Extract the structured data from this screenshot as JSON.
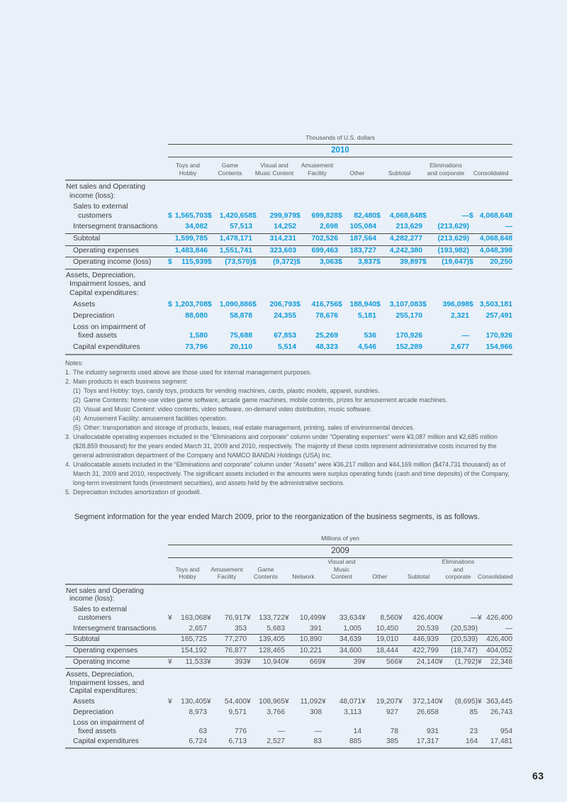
{
  "page": {
    "number": "63"
  },
  "colors": {
    "page_background": "#e9f0f8",
    "accent_blue": "#0e9bd8",
    "text_dark": "#3f3b3a",
    "text_gray": "#595757"
  },
  "intro_paragraph": "Segment information for the year ended March 2009, prior to the reorganization of the business segments, is as follows.",
  "table2010": {
    "unit_label": "Thousands of U.S. dollars",
    "year": "2010",
    "columns": [
      "Toys and\nHobby",
      "Game\nContents",
      "Visual and\nMusic Content",
      "Amusement\nFacility",
      "Other",
      "Subtotal",
      "Eliminations\nand corporate",
      "Consolidated"
    ],
    "rows": [
      {
        "label": "Net sales and Operating\nincome (loss):",
        "section": true
      },
      {
        "label": "Sales to external\ncustomers",
        "values": [
          "$1,565,703",
          "$1,420,658",
          "$299,979",
          "$699,828",
          "$ 82,480",
          "$4,068,648",
          "$ —",
          "$4,068,648"
        ]
      },
      {
        "label": "Intersegment transactions",
        "values": [
          "34,082",
          "57,513",
          "14,252",
          "2,698",
          "105,084",
          "213,629",
          "(213,629)",
          "—"
        ],
        "rule": true
      },
      {
        "label": "Subtotal",
        "values": [
          "1,599,785",
          "1,478,171",
          "314,231",
          "702,526",
          "187,564",
          "4,282,277",
          "(213,629)",
          "4,068,648"
        ],
        "rule": true
      },
      {
        "label": "Operating expenses",
        "values": [
          "1,483,846",
          "1,551,741",
          "323,603",
          "699,463",
          "183,727",
          "4,242,380",
          "(193,982)",
          "4,048,398"
        ],
        "rule": true
      },
      {
        "label": "Operating income (loss)",
        "values": [
          "$ 115,939",
          "$ (73,570)",
          "$ (9,372)",
          "$ 3,063",
          "$ 3,837",
          "$ 39,897",
          "$ (19,647)",
          "$ 20,250"
        ],
        "rule": true
      },
      {
        "label": "Assets, Depreciation,\nImpairment losses, and\nCapital expenditures:",
        "section": true
      },
      {
        "label": "Assets",
        "values": [
          "$1,203,708",
          "$1,090,886",
          "$206,793",
          "$416,756",
          "$188,940",
          "$3,107,083",
          "$ 396,098",
          "$3,503,181"
        ]
      },
      {
        "label": "Depreciation",
        "values": [
          "88,080",
          "58,878",
          "24,355",
          "78,676",
          "5,181",
          "255,170",
          "2,321",
          "257,491"
        ]
      },
      {
        "label": "Loss on impairment of\nfixed assets",
        "values": [
          "1,580",
          "75,688",
          "67,853",
          "25,269",
          "536",
          "170,926",
          "—",
          "170,926"
        ]
      },
      {
        "label": "Capital expenditures",
        "values": [
          "73,796",
          "20,110",
          "5,514",
          "48,323",
          "4,546",
          "152,289",
          "2,677",
          "154,966"
        ]
      }
    ]
  },
  "notes": {
    "heading": "Notes:",
    "items": [
      {
        "marker": "1.",
        "level": 0,
        "text": "The industry segments used above are those used for internal management purposes."
      },
      {
        "marker": "2.",
        "level": 0,
        "text": "Main products in each business segment:"
      },
      {
        "marker": "(1)",
        "level": 1,
        "text": "Toys and Hobby: toys, candy toys, products for vending machines, cards, plastic models, apparel, sundries."
      },
      {
        "marker": "(2)",
        "level": 1,
        "text": "Game Contents: home-use video game software, arcade game machines, mobile contents, prizes for amusement arcade machines."
      },
      {
        "marker": "(3)",
        "level": 1,
        "text": "Visual and Music Content: video contents, video software, on-demand video distribution, music software."
      },
      {
        "marker": "(4)",
        "level": 1,
        "text": "Amusement Facility: amusement facilities operation."
      },
      {
        "marker": "(5)",
        "level": 1,
        "text": "Other: transportation and storage of products, leases, real estate management, printing, sales of environmental devices."
      },
      {
        "marker": "3.",
        "level": 0,
        "text": "Unallocatable operating expenses included in the “Eliminations and corporate” column under “Operating expenses” were ¥3,087 million and ¥2,685 million ($28,859 thousand) for the years ended March 31, 2009 and 2010, respectively. The majority of these costs represent administrative costs incurred by the general administration department of the Company and NAMCO BANDAI Holdings (USA) Inc."
      },
      {
        "marker": "4.",
        "level": 0,
        "text": "Unallocatable assets included in the “Eliminations and corporate” column under “Assets” were ¥36,217 million and ¥44,169 million ($474,731 thousand) as of March 31, 2009 and 2010, respectively. The significant assets included in the amounts were surplus operating funds (cash and time deposits) of the Company, long-term investment funds (investment securities), and assets held by the administrative sections."
      },
      {
        "marker": "5.",
        "level": 0,
        "text": "Depreciation includes amortization of goodwill."
      }
    ]
  },
  "table2009": {
    "unit_label": "Millions of yen",
    "year": "2009",
    "columns": [
      "Toys and\nHobby",
      "Amusement\nFacility",
      "Game\nContents",
      "Network",
      "Visual and\nMusic\nContent",
      "Other",
      "Subtotal",
      "Eliminations\nand\ncorporate",
      "Consolidated"
    ],
    "rows": [
      {
        "label": "Net sales and Operating\nincome (loss):",
        "section": true
      },
      {
        "label": "Sales to external\ncustomers",
        "values": [
          "¥163,068",
          "¥76,917",
          "¥133,722",
          "¥10,499",
          "¥33,634",
          "¥ 8,560",
          "¥426,400",
          "¥ —",
          "¥426,400"
        ]
      },
      {
        "label": "Intersegment transactions",
        "values": [
          "2,657",
          "353",
          "5,683",
          "391",
          "1,005",
          "10,450",
          "20,539",
          "(20,539)",
          "—"
        ],
        "rule": true
      },
      {
        "label": "Subtotal",
        "values": [
          "165,725",
          "77,270",
          "139,405",
          "10,890",
          "34,639",
          "19,010",
          "446,939",
          "(20,539)",
          "426,400"
        ],
        "rule": true
      },
      {
        "label": "Operating expenses",
        "values": [
          "154,192",
          "76,877",
          "128,465",
          "10,221",
          "34,600",
          "18,444",
          "422,799",
          "(18,747)",
          "404,052"
        ],
        "rule": true
      },
      {
        "label": "Operating income",
        "values": [
          "¥ 11,533",
          "¥ 393",
          "¥ 10,940",
          "¥ 669",
          "¥ 39",
          "¥ 566",
          "¥ 24,140",
          "¥ (1,792)",
          "¥ 22,348"
        ],
        "rule": true
      },
      {
        "label": "Assets, Depreciation,\nImpairment losses, and\nCapital expenditures:",
        "section": true
      },
      {
        "label": "Assets",
        "values": [
          "¥130,405",
          "¥54,400",
          "¥108,965",
          "¥11,092",
          "¥48,071",
          "¥19,207",
          "¥372,140",
          "¥ (8,695)",
          "¥363,445"
        ]
      },
      {
        "label": "Depreciation",
        "values": [
          "8,973",
          "9,571",
          "3,766",
          "308",
          "3,113",
          "927",
          "26,658",
          "85",
          "26,743"
        ]
      },
      {
        "label": "Loss on impairment of\nfixed assets",
        "values": [
          "63",
          "776",
          "—",
          "—",
          "14",
          "78",
          "931",
          "23",
          "954"
        ]
      },
      {
        "label": "Capital expenditures",
        "values": [
          "6,724",
          "6,713",
          "2,527",
          "83",
          "885",
          "385",
          "17,317",
          "164",
          "17,481"
        ]
      }
    ]
  }
}
